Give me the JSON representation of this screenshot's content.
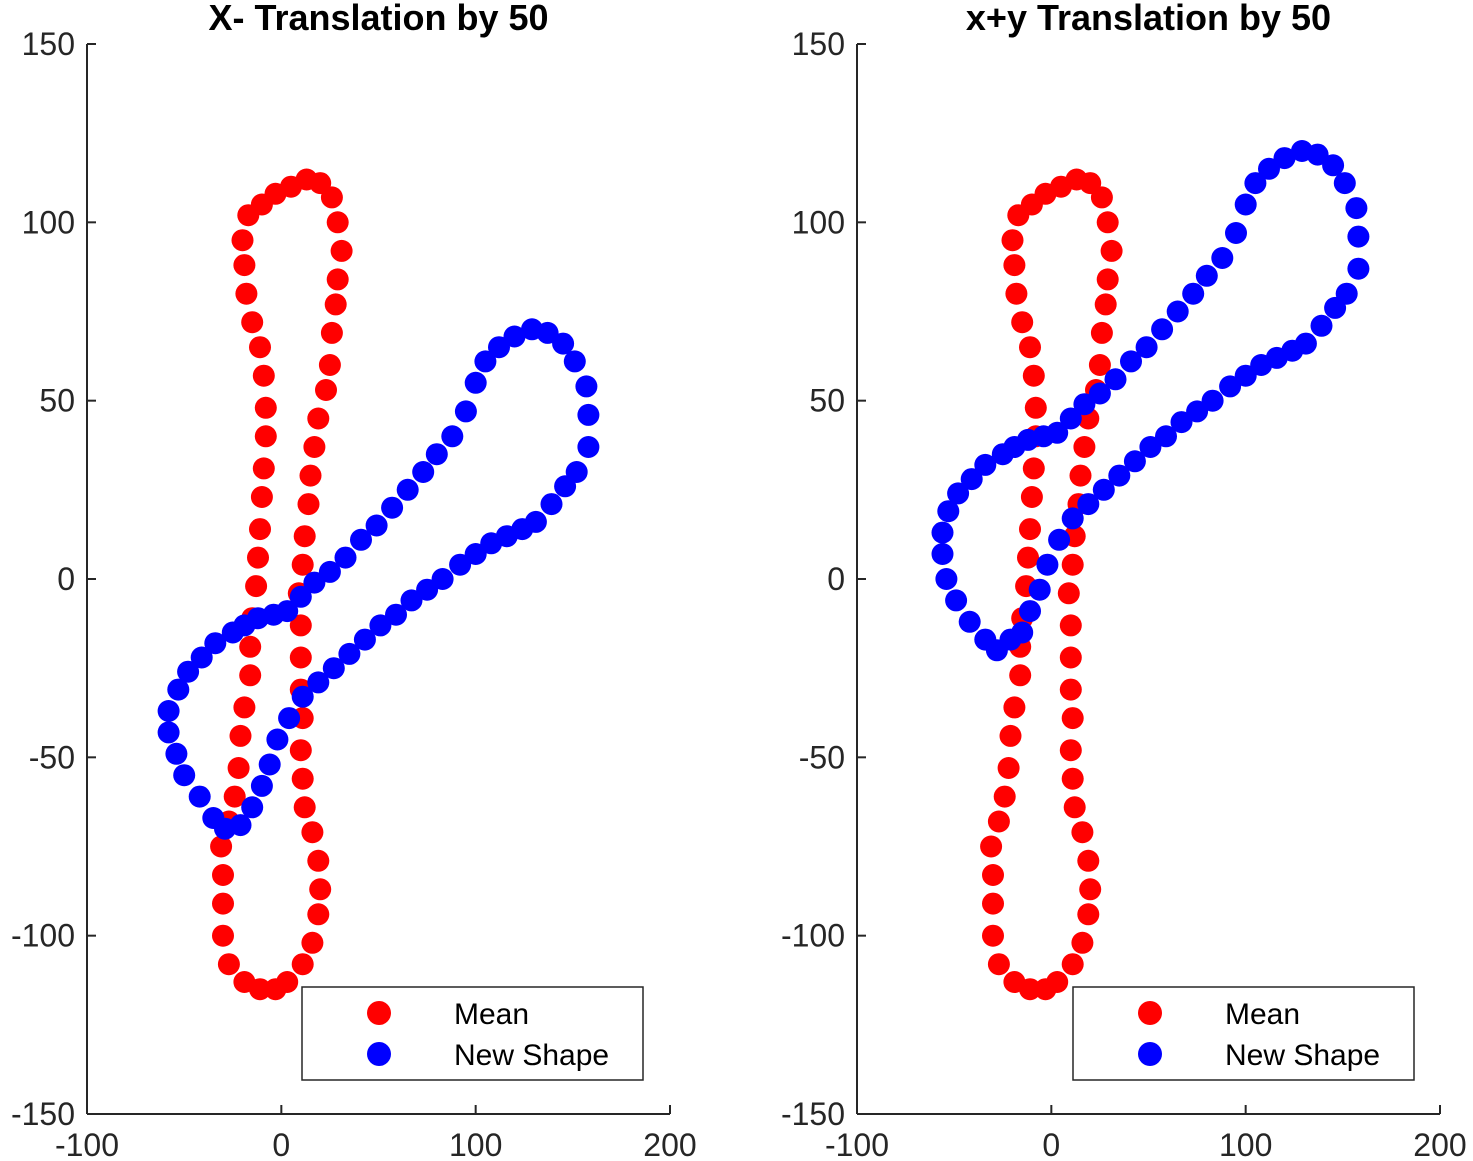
{
  "chart_data": [
    {
      "type": "scatter",
      "title": "X- Translation by 50",
      "xlabel": "",
      "ylabel": "",
      "xlim": [
        -100,
        200
      ],
      "ylim": [
        -150,
        150
      ],
      "xticks": [
        -100,
        0,
        100,
        200
      ],
      "yticks": [
        -150,
        -100,
        -50,
        0,
        50,
        100,
        150
      ],
      "grid": false,
      "legend": {
        "placement": "bottom-right",
        "entries": [
          "Mean",
          "New Shape"
        ]
      },
      "series": [
        {
          "name": "Mean",
          "color": "#ff0000",
          "points": [
            [
              -3,
              -115
            ],
            [
              -11,
              -115
            ],
            [
              -19,
              -113
            ],
            [
              -27,
              -108
            ],
            [
              -30,
              -100
            ],
            [
              -30,
              -91
            ],
            [
              -30,
              -83
            ],
            [
              -31,
              -75
            ],
            [
              -27,
              -68
            ],
            [
              -24,
              -61
            ],
            [
              -22,
              -53
            ],
            [
              -21,
              -44
            ],
            [
              -19,
              -36
            ],
            [
              -16,
              -27
            ],
            [
              -16,
              -19
            ],
            [
              -15,
              -11
            ],
            [
              -13,
              -2
            ],
            [
              -12,
              6
            ],
            [
              -11,
              14
            ],
            [
              -10,
              23
            ],
            [
              -9,
              31
            ],
            [
              -8,
              40
            ],
            [
              -8,
              48
            ],
            [
              -9,
              57
            ],
            [
              -11,
              65
            ],
            [
              -15,
              72
            ],
            [
              -18,
              80
            ],
            [
              -19,
              88
            ],
            [
              -20,
              95
            ],
            [
              -17,
              102
            ],
            [
              -10,
              105
            ],
            [
              -3,
              108
            ],
            [
              5,
              110
            ],
            [
              13,
              112
            ],
            [
              20,
              111
            ],
            [
              26,
              107
            ],
            [
              29,
              100
            ],
            [
              31,
              92
            ],
            [
              29,
              84
            ],
            [
              28,
              77
            ],
            [
              26,
              69
            ],
            [
              25,
              60
            ],
            [
              23,
              53
            ],
            [
              19,
              45
            ],
            [
              17,
              37
            ],
            [
              15,
              29
            ],
            [
              14,
              21
            ],
            [
              12,
              12
            ],
            [
              11,
              4
            ],
            [
              9,
              -4
            ],
            [
              10,
              -13
            ],
            [
              10,
              -22
            ],
            [
              10,
              -31
            ],
            [
              11,
              -39
            ],
            [
              10,
              -48
            ],
            [
              11,
              -56
            ],
            [
              12,
              -64
            ],
            [
              16,
              -71
            ],
            [
              19,
              -79
            ],
            [
              20,
              -87
            ],
            [
              19,
              -94
            ],
            [
              16,
              -102
            ],
            [
              11,
              -108
            ],
            [
              3,
              -113
            ]
          ]
        },
        {
          "name": "New Shape",
          "color": "#0000ff",
          "points": [
            [
              -58,
              -37
            ],
            [
              -58,
              -43
            ],
            [
              -54,
              -49
            ],
            [
              -50,
              -55
            ],
            [
              -42,
              -61
            ],
            [
              -35,
              -67
            ],
            [
              -29,
              -70
            ],
            [
              -21,
              -69
            ],
            [
              -15,
              -64
            ],
            [
              -10,
              -58
            ],
            [
              -6,
              -52
            ],
            [
              -2,
              -45
            ],
            [
              4,
              -39
            ],
            [
              11,
              -33
            ],
            [
              19,
              -29
            ],
            [
              27,
              -25
            ],
            [
              35,
              -21
            ],
            [
              43,
              -17
            ],
            [
              51,
              -13
            ],
            [
              59,
              -10
            ],
            [
              67,
              -6
            ],
            [
              75,
              -3
            ],
            [
              83,
              0
            ],
            [
              92,
              4
            ],
            [
              100,
              7
            ],
            [
              108,
              10
            ],
            [
              116,
              12
            ],
            [
              124,
              14
            ],
            [
              131,
              16
            ],
            [
              139,
              21
            ],
            [
              146,
              26
            ],
            [
              152,
              30
            ],
            [
              158,
              37
            ],
            [
              158,
              46
            ],
            [
              157,
              54
            ],
            [
              151,
              61
            ],
            [
              145,
              66
            ],
            [
              137,
              69
            ],
            [
              129,
              70
            ],
            [
              120,
              68
            ],
            [
              112,
              65
            ],
            [
              105,
              61
            ],
            [
              100,
              55
            ],
            [
              95,
              47
            ],
            [
              88,
              40
            ],
            [
              80,
              35
            ],
            [
              73,
              30
            ],
            [
              65,
              25
            ],
            [
              57,
              20
            ],
            [
              49,
              15
            ],
            [
              41,
              11
            ],
            [
              33,
              6
            ],
            [
              25,
              2
            ],
            [
              17,
              -1
            ],
            [
              10,
              -5
            ],
            [
              3,
              -9
            ],
            [
              -4,
              -10
            ],
            [
              -12,
              -11
            ],
            [
              -19,
              -13
            ],
            [
              -25,
              -15
            ],
            [
              -34,
              -18
            ],
            [
              -41,
              -22
            ],
            [
              -48,
              -26
            ],
            [
              -53,
              -31
            ]
          ]
        }
      ]
    },
    {
      "type": "scatter",
      "title": "x+y Translation by 50",
      "xlabel": "",
      "ylabel": "",
      "xlim": [
        -100,
        200
      ],
      "ylim": [
        -150,
        150
      ],
      "xticks": [
        -100,
        0,
        100,
        200
      ],
      "yticks": [
        -150,
        -100,
        -50,
        0,
        50,
        100,
        150
      ],
      "grid": false,
      "legend": {
        "placement": "bottom-right",
        "entries": [
          "Mean",
          "New Shape"
        ]
      },
      "series": [
        {
          "name": "Mean",
          "color": "#ff0000",
          "points": [
            [
              -3,
              -115
            ],
            [
              -11,
              -115
            ],
            [
              -19,
              -113
            ],
            [
              -27,
              -108
            ],
            [
              -30,
              -100
            ],
            [
              -30,
              -91
            ],
            [
              -30,
              -83
            ],
            [
              -31,
              -75
            ],
            [
              -27,
              -68
            ],
            [
              -24,
              -61
            ],
            [
              -22,
              -53
            ],
            [
              -21,
              -44
            ],
            [
              -19,
              -36
            ],
            [
              -16,
              -27
            ],
            [
              -16,
              -19
            ],
            [
              -15,
              -11
            ],
            [
              -13,
              -2
            ],
            [
              -12,
              6
            ],
            [
              -11,
              14
            ],
            [
              -10,
              23
            ],
            [
              -9,
              31
            ],
            [
              -8,
              40
            ],
            [
              -8,
              48
            ],
            [
              -9,
              57
            ],
            [
              -11,
              65
            ],
            [
              -15,
              72
            ],
            [
              -18,
              80
            ],
            [
              -19,
              88
            ],
            [
              -20,
              95
            ],
            [
              -17,
              102
            ],
            [
              -10,
              105
            ],
            [
              -3,
              108
            ],
            [
              5,
              110
            ],
            [
              13,
              112
            ],
            [
              20,
              111
            ],
            [
              26,
              107
            ],
            [
              29,
              100
            ],
            [
              31,
              92
            ],
            [
              29,
              84
            ],
            [
              28,
              77
            ],
            [
              26,
              69
            ],
            [
              25,
              60
            ],
            [
              23,
              53
            ],
            [
              19,
              45
            ],
            [
              17,
              37
            ],
            [
              15,
              29
            ],
            [
              14,
              21
            ],
            [
              12,
              12
            ],
            [
              11,
              4
            ],
            [
              9,
              -4
            ],
            [
              10,
              -13
            ],
            [
              10,
              -22
            ],
            [
              10,
              -31
            ],
            [
              11,
              -39
            ],
            [
              10,
              -48
            ],
            [
              11,
              -56
            ],
            [
              12,
              -64
            ],
            [
              16,
              -71
            ],
            [
              19,
              -79
            ],
            [
              20,
              -87
            ],
            [
              19,
              -94
            ],
            [
              16,
              -102
            ],
            [
              11,
              -108
            ],
            [
              3,
              -113
            ]
          ]
        },
        {
          "name": "New Shape",
          "color": "#0000ff",
          "points": [
            [
              -56,
              13
            ],
            [
              -56,
              7
            ],
            [
              -54,
              0
            ],
            [
              -49,
              -6
            ],
            [
              -42,
              -12
            ],
            [
              -34,
              -17
            ],
            [
              -28,
              -20
            ],
            [
              -21,
              -17
            ],
            [
              -15,
              -15
            ],
            [
              -11,
              -9
            ],
            [
              -6,
              -3
            ],
            [
              -2,
              4
            ],
            [
              4,
              11
            ],
            [
              11,
              17
            ],
            [
              19,
              21
            ],
            [
              27,
              25
            ],
            [
              35,
              29
            ],
            [
              43,
              33
            ],
            [
              51,
              37
            ],
            [
              59,
              40
            ],
            [
              67,
              44
            ],
            [
              75,
              47
            ],
            [
              83,
              50
            ],
            [
              92,
              54
            ],
            [
              100,
              57
            ],
            [
              108,
              60
            ],
            [
              116,
              62
            ],
            [
              124,
              64
            ],
            [
              131,
              66
            ],
            [
              139,
              71
            ],
            [
              146,
              76
            ],
            [
              152,
              80
            ],
            [
              158,
              87
            ],
            [
              158,
              96
            ],
            [
              157,
              104
            ],
            [
              151,
              111
            ],
            [
              145,
              116
            ],
            [
              137,
              119
            ],
            [
              129,
              120
            ],
            [
              120,
              118
            ],
            [
              112,
              115
            ],
            [
              105,
              111
            ],
            [
              100,
              105
            ],
            [
              95,
              97
            ],
            [
              88,
              90
            ],
            [
              80,
              85
            ],
            [
              73,
              80
            ],
            [
              65,
              75
            ],
            [
              57,
              70
            ],
            [
              49,
              65
            ],
            [
              41,
              61
            ],
            [
              33,
              56
            ],
            [
              25,
              52
            ],
            [
              17,
              49
            ],
            [
              10,
              45
            ],
            [
              3,
              41
            ],
            [
              -4,
              40
            ],
            [
              -12,
              39
            ],
            [
              -19,
              37
            ],
            [
              -25,
              35
            ],
            [
              -34,
              32
            ],
            [
              -41,
              28
            ],
            [
              -48,
              24
            ],
            [
              -53,
              19
            ]
          ]
        }
      ]
    }
  ]
}
